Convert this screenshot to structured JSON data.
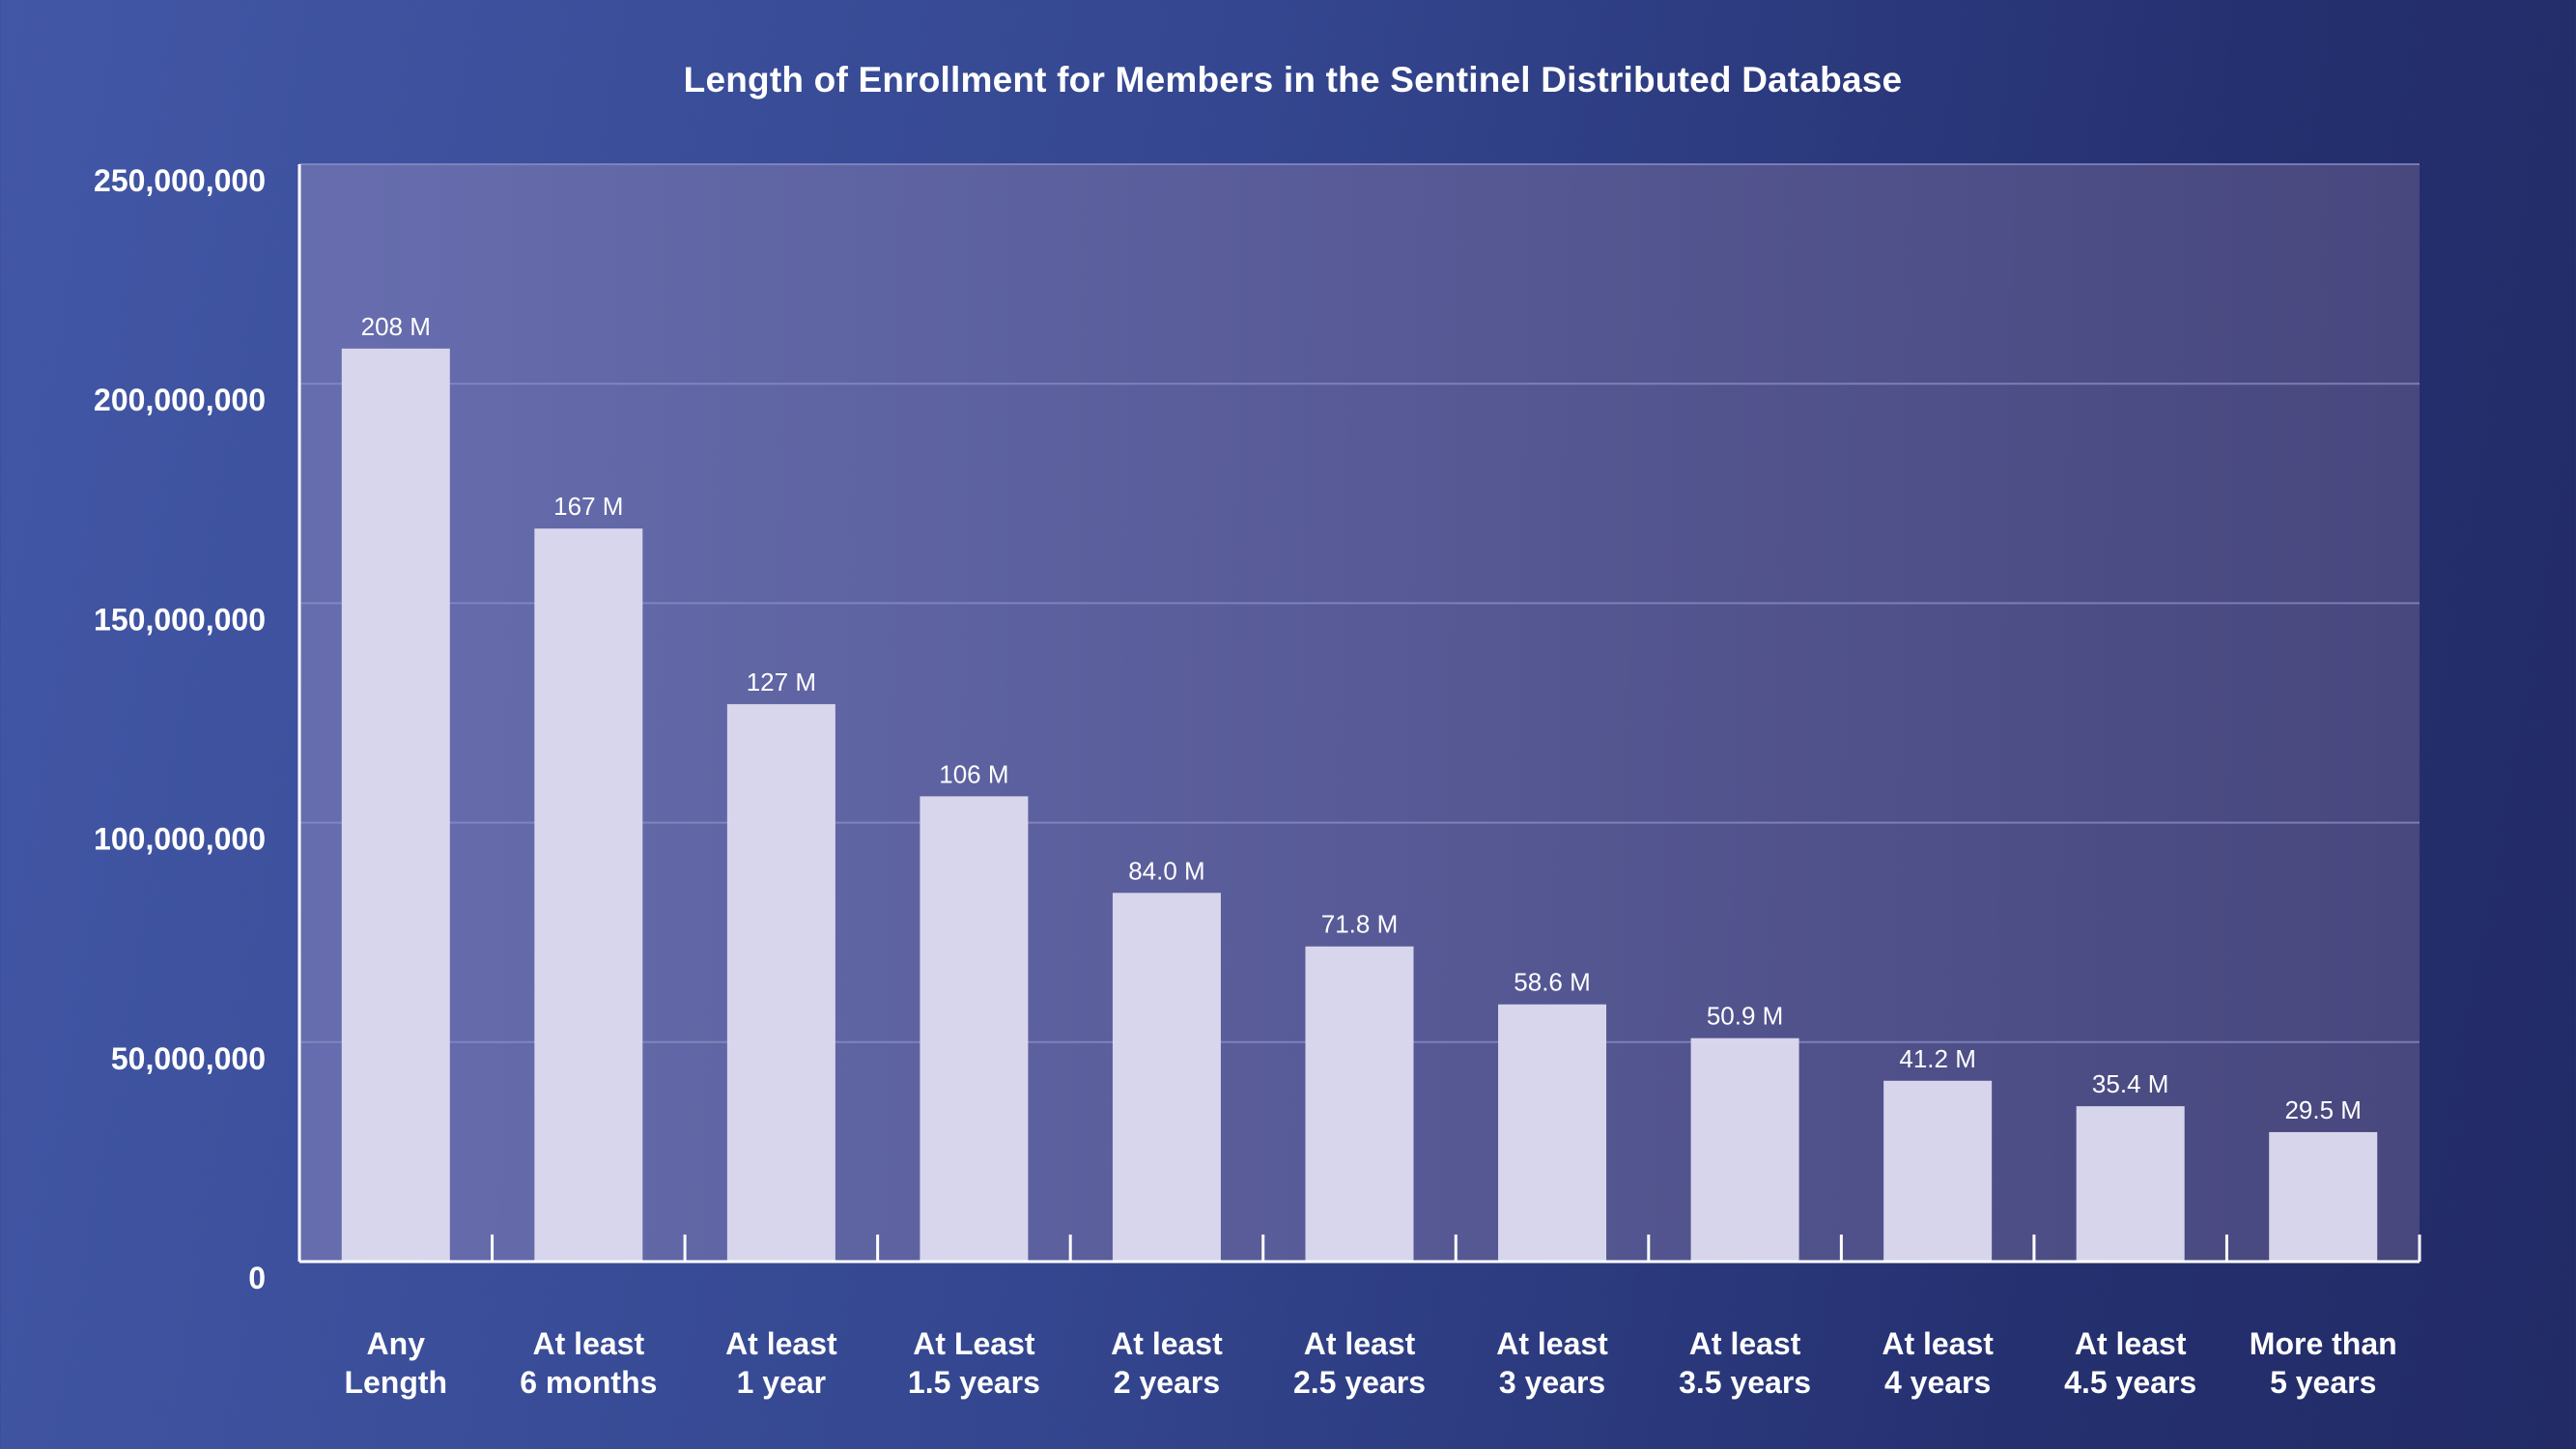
{
  "chart_data": {
    "type": "bar",
    "title": "Length of Enrollment for Members in the Sentinel Distributed Database",
    "xlabel": "",
    "ylabel": "",
    "ylim": [
      0,
      250000000
    ],
    "yticks": [
      0,
      50000000,
      100000000,
      150000000,
      200000000,
      250000000
    ],
    "ytick_labels": [
      "0",
      "50,000,000",
      "100,000,000",
      "150,000,000",
      "200,000,000",
      "250,000,000"
    ],
    "grid": true,
    "legend": "none",
    "categories": [
      [
        "Any",
        "Length"
      ],
      [
        "At least",
        "6 months"
      ],
      [
        "At least",
        "1 year"
      ],
      [
        "At Least",
        "1.5 years"
      ],
      [
        "At least",
        "2 years"
      ],
      [
        "At least",
        "2.5 years"
      ],
      [
        "At least",
        "3 years"
      ],
      [
        "At least",
        "3.5 years"
      ],
      [
        "At least",
        "4 years"
      ],
      [
        "At least",
        "4.5 years"
      ],
      [
        "More than",
        "5 years"
      ]
    ],
    "values": [
      208000000,
      167000000,
      127000000,
      106000000,
      84000000,
      71800000,
      58600000,
      50900000,
      41200000,
      35400000,
      29500000
    ],
    "data_labels": [
      "208 M",
      "167 M",
      "127 M",
      "106 M",
      "84.0 M",
      "71.8 M",
      "58.6 M",
      "50.9 M",
      "41.2 M",
      "35.4 M",
      "29.5 M"
    ],
    "colors": {
      "bar": "#dcdaee",
      "plot_bg_start": "#6b70b0",
      "plot_bg_end": "#4c4a80",
      "gridline": "#8a8fc6",
      "axis": "#ffffff"
    }
  }
}
